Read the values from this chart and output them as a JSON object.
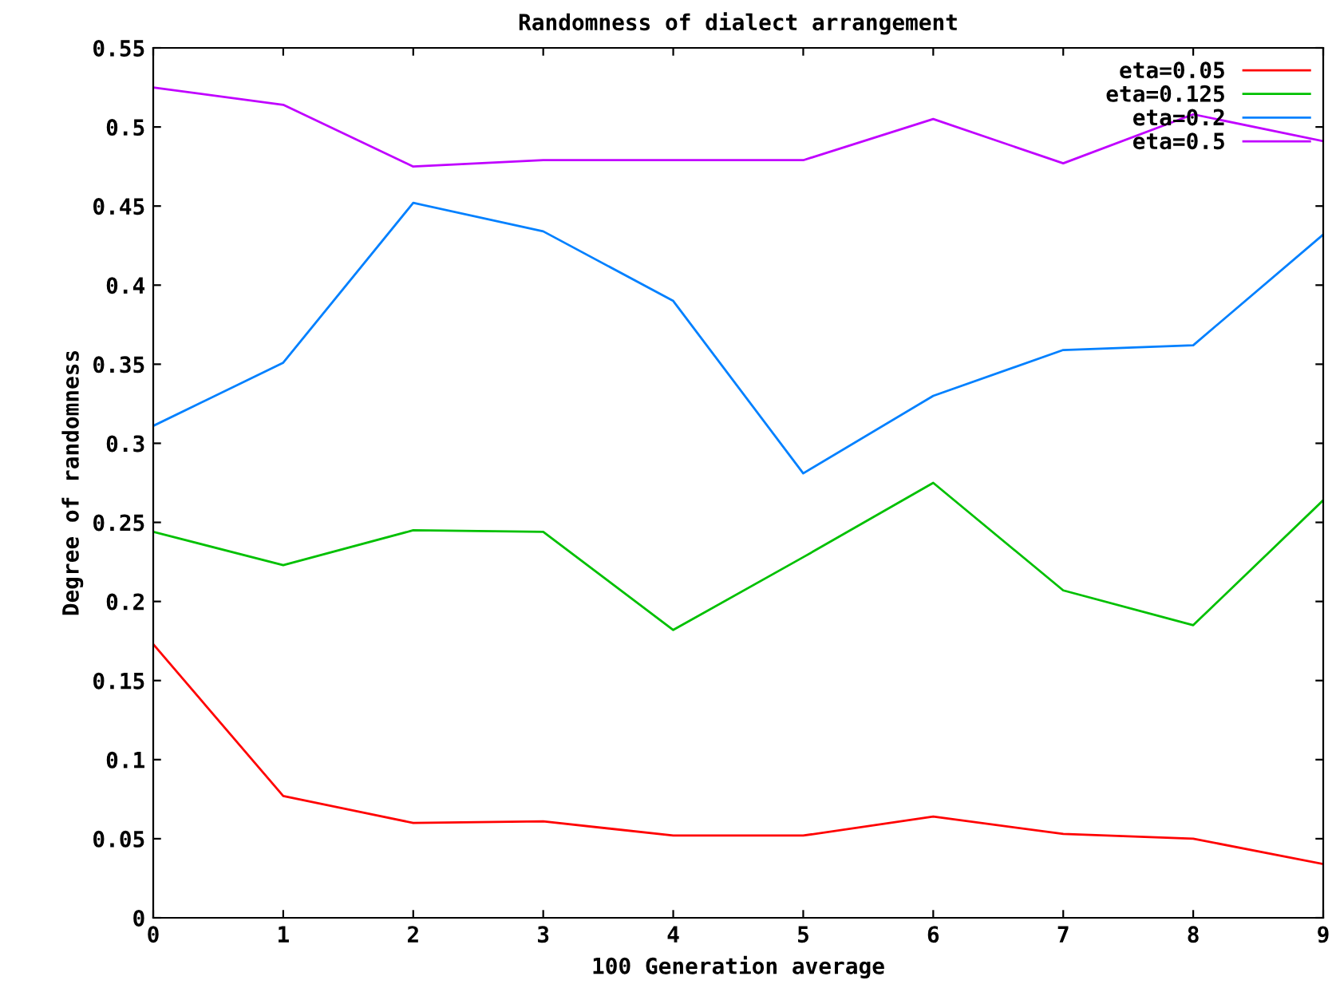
{
  "chart_data": {
    "type": "line",
    "title": "Randomness of dialect arrangement",
    "xlabel": "100 Generation average",
    "ylabel": "Degree of randomness",
    "x": [
      0,
      1,
      2,
      3,
      4,
      5,
      6,
      7,
      8,
      9
    ],
    "series": [
      {
        "name": "eta=0.05",
        "color": "#ff0000",
        "values": [
          0.173,
          0.077,
          0.06,
          0.061,
          0.052,
          0.052,
          0.064,
          0.053,
          0.05,
          0.034
        ]
      },
      {
        "name": "eta=0.125",
        "color": "#00c000",
        "values": [
          0.244,
          0.223,
          0.245,
          0.244,
          0.182,
          0.228,
          0.275,
          0.207,
          0.185,
          0.264
        ]
      },
      {
        "name": "eta=0.2",
        "color": "#0080ff",
        "values": [
          0.311,
          0.351,
          0.452,
          0.434,
          0.39,
          0.281,
          0.33,
          0.359,
          0.362,
          0.432
        ]
      },
      {
        "name": "eta=0.5",
        "color": "#c000ff",
        "values": [
          0.525,
          0.514,
          0.475,
          0.479,
          0.479,
          0.479,
          0.505,
          0.477,
          0.508,
          0.491
        ]
      }
    ],
    "xlim": [
      0,
      9
    ],
    "xticks": [
      0,
      1,
      2,
      3,
      4,
      5,
      6,
      7,
      8,
      9
    ],
    "ylim": [
      0,
      0.55
    ],
    "yticks": [
      0,
      0.05,
      0.1,
      0.15,
      0.2,
      0.25,
      0.3,
      0.35,
      0.4,
      0.45,
      0.5,
      0.55
    ],
    "grid": false,
    "legend": "top right",
    "marker": "none",
    "line_style": "solid"
  }
}
